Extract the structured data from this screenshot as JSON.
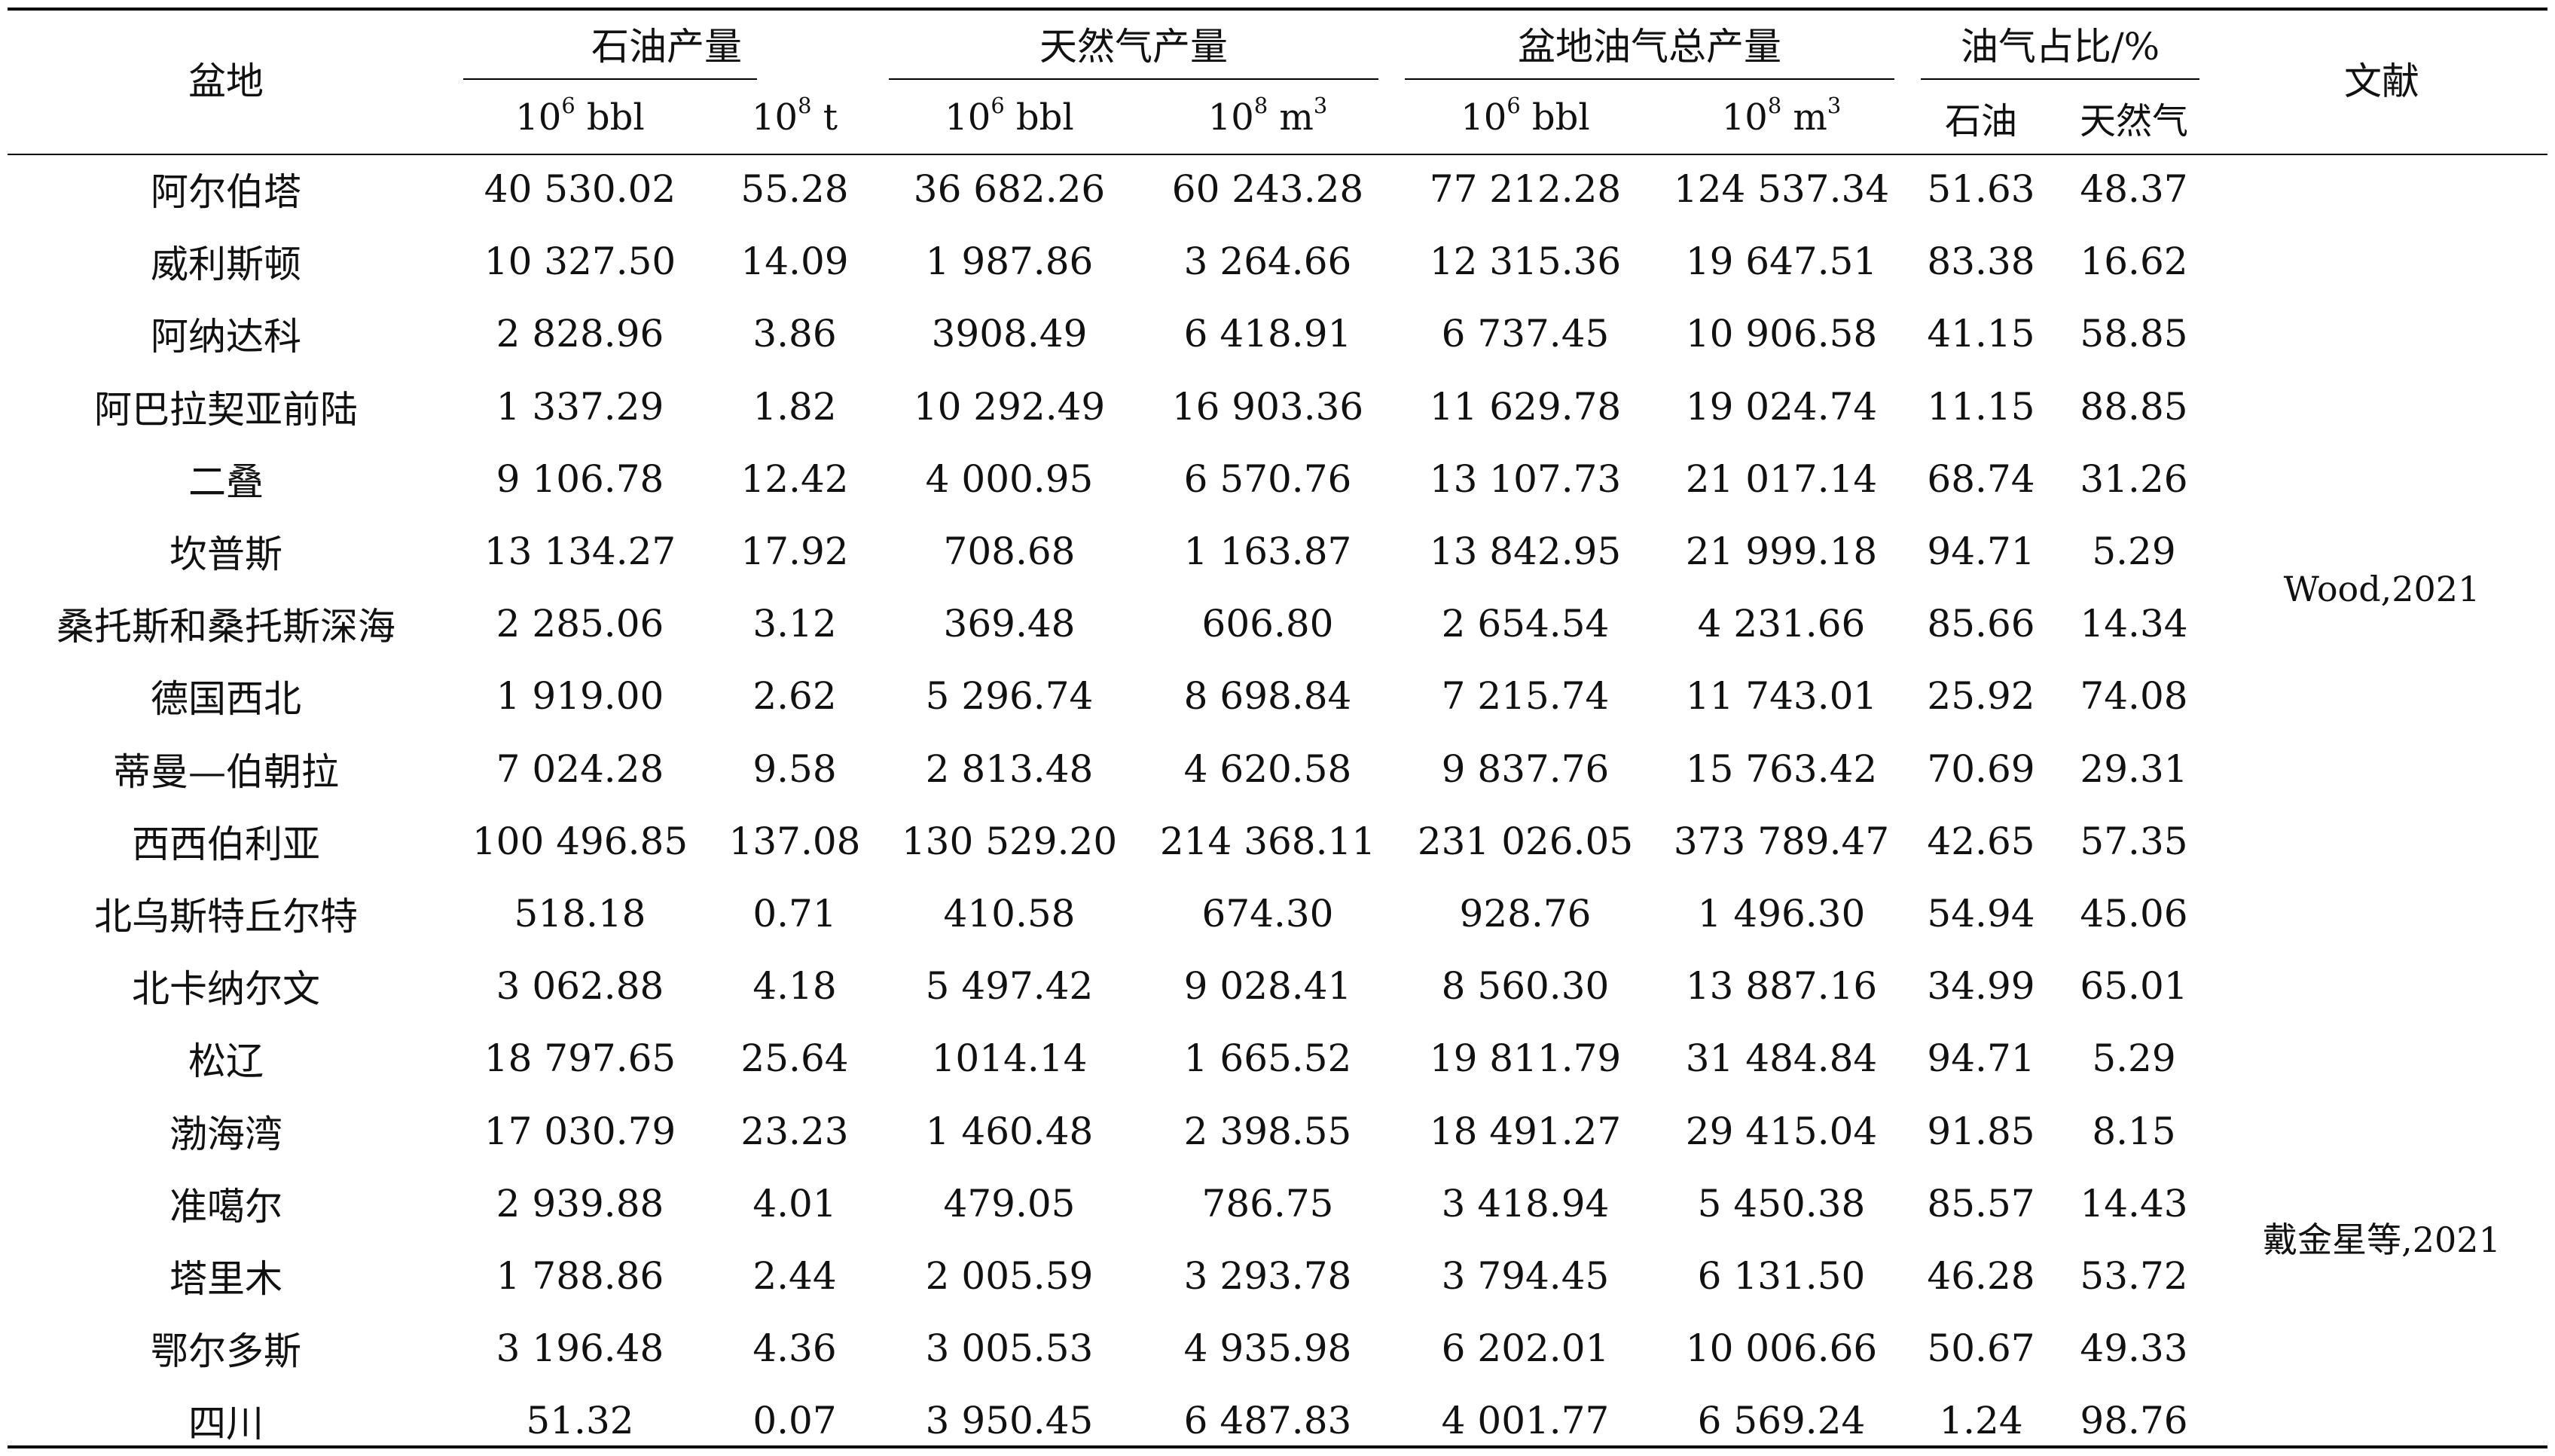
{
  "header": {
    "basin": "盆地",
    "oil_prod": "石油产量",
    "gas_prod": "天然气产量",
    "total_prod": "盆地油气总产量",
    "ratio": "油气占比/%",
    "ref": "文献"
  },
  "units": {
    "oil_bbl_base": "10",
    "oil_bbl_exp": "6",
    "oil_bbl_unit": "bbl",
    "oil_t_base": "10",
    "oil_t_exp": "8",
    "oil_t_unit": "t",
    "gas_bbl_base": "10",
    "gas_bbl_exp": "6",
    "gas_bbl_unit": "bbl",
    "gas_m3_base": "10",
    "gas_m3_exp": "8",
    "gas_m3_unit": "m",
    "gas_m3_unit_exp": "3",
    "tot_bbl_base": "10",
    "tot_bbl_exp": "6",
    "tot_bbl_unit": "bbl",
    "tot_m3_base": "10",
    "tot_m3_exp": "8",
    "tot_m3_unit": "m",
    "tot_m3_unit_exp": "3",
    "ratio_oil": "石油",
    "ratio_gas": "天然气"
  },
  "rows": [
    [
      "阿尔伯塔",
      "40 530.02",
      "55.28",
      "36 682.26",
      "60 243.28",
      "77 212.28",
      "124 537.34",
      "51.63",
      "48.37"
    ],
    [
      "威利斯顿",
      "10 327.50",
      "14.09",
      "1 987.86",
      "3 264.66",
      "12 315.36",
      "19 647.51",
      "83.38",
      "16.62"
    ],
    [
      "阿纳达科",
      "2 828.96",
      "3.86",
      "3908.49",
      "6 418.91",
      "6 737.45",
      "10 906.58",
      "41.15",
      "58.85"
    ],
    [
      "阿巴拉契亚前陆",
      "1 337.29",
      "1.82",
      "10 292.49",
      "16 903.36",
      "11 629.78",
      "19 024.74",
      "11.15",
      "88.85"
    ],
    [
      "二叠",
      "9 106.78",
      "12.42",
      "4 000.95",
      "6 570.76",
      "13 107.73",
      "21 017.14",
      "68.74",
      "31.26"
    ],
    [
      "坎普斯",
      "13 134.27",
      "17.92",
      "708.68",
      "1 163.87",
      "13 842.95",
      "21 999.18",
      "94.71",
      "5.29"
    ],
    [
      "桑托斯和桑托斯深海",
      "2 285.06",
      "3.12",
      "369.48",
      "606.80",
      "2 654.54",
      "4 231.66",
      "85.66",
      "14.34"
    ],
    [
      "德国西北",
      "1 919.00",
      "2.62",
      "5 296.74",
      "8 698.84",
      "7 215.74",
      "11 743.01",
      "25.92",
      "74.08"
    ],
    [
      "蒂曼—伯朝拉",
      "7 024.28",
      "9.58",
      "2 813.48",
      "4 620.58",
      "9 837.76",
      "15 763.42",
      "70.69",
      "29.31"
    ],
    [
      "西西伯利亚",
      "100 496.85",
      "137.08",
      "130 529.20",
      "214 368.11",
      "231 026.05",
      "373 789.47",
      "42.65",
      "57.35"
    ],
    [
      "北乌斯特丘尔特",
      "518.18",
      "0.71",
      "410.58",
      "674.30",
      "928.76",
      "1 496.30",
      "54.94",
      "45.06"
    ],
    [
      "北卡纳尔文",
      "3 062.88",
      "4.18",
      "5 497.42",
      "9 028.41",
      "8 560.30",
      "13 887.16",
      "34.99",
      "65.01"
    ],
    [
      "松辽",
      "18 797.65",
      "25.64",
      "1014.14",
      "1 665.52",
      "19 811.79",
      "31 484.84",
      "94.71",
      "5.29"
    ],
    [
      "渤海湾",
      "17 030.79",
      "23.23",
      "1 460.48",
      "2 398.55",
      "18 491.27",
      "29 415.04",
      "91.85",
      "8.15"
    ],
    [
      "准噶尔",
      "2 939.88",
      "4.01",
      "479.05",
      "786.75",
      "3 418.94",
      "5 450.38",
      "85.57",
      "14.43"
    ],
    [
      "塔里木",
      "1 788.86",
      "2.44",
      "2 005.59",
      "3 293.78",
      "3 794.45",
      "6 131.50",
      "46.28",
      "53.72"
    ],
    [
      "鄂尔多斯",
      "3 196.48",
      "4.36",
      "3 005.53",
      "4 935.98",
      "6 202.01",
      "10 006.66",
      "50.67",
      "49.33"
    ],
    [
      "四川",
      "51.32",
      "0.07",
      "3 950.45",
      "6 487.83",
      "4 001.77",
      "6 569.24",
      "1.24",
      "98.76"
    ]
  ],
  "references": [
    "Wood,2021",
    "戴金星等,2021"
  ]
}
